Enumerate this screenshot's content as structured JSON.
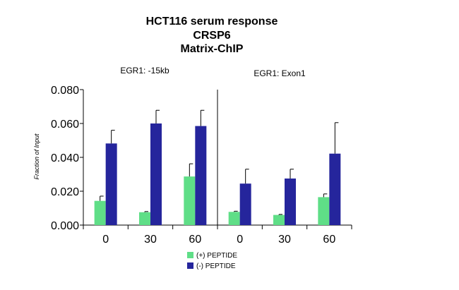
{
  "chart_data": {
    "type": "bar",
    "title_lines": [
      "HCT116 serum response",
      "CRSP6",
      "Matrix-ChIP"
    ],
    "ylabel": "Fraction of Input",
    "xlabel": "",
    "ylim": [
      0,
      0.08
    ],
    "yticks": [
      "0.000",
      "0.020",
      "0.040",
      "0.060",
      "0.080"
    ],
    "grid": false,
    "legend_position": "bottom-center",
    "series": [
      {
        "name": "(+) PEPTIDE",
        "color": "#5fde87"
      },
      {
        "name": "(-) PEPTIDE",
        "color": "#25259c"
      }
    ],
    "panels": [
      {
        "title": "EGR1: -15kb",
        "categories": [
          "0",
          "30",
          "60"
        ],
        "values": [
          [
            0.0143,
            0.0076,
            0.0287
          ],
          [
            0.0482,
            0.06,
            0.0585
          ]
        ],
        "errors": [
          [
            0.0028,
            0.0004,
            0.0075
          ],
          [
            0.0078,
            0.0078,
            0.0093
          ]
        ]
      },
      {
        "title": "EGR1: Exon1",
        "categories": [
          "0",
          "30",
          "60"
        ],
        "values": [
          [
            0.0078,
            0.006,
            0.0165
          ],
          [
            0.0245,
            0.0275,
            0.0422
          ]
        ],
        "errors": [
          [
            0.0004,
            0.0003,
            0.0019
          ],
          [
            0.0085,
            0.0055,
            0.0183
          ]
        ]
      }
    ]
  }
}
